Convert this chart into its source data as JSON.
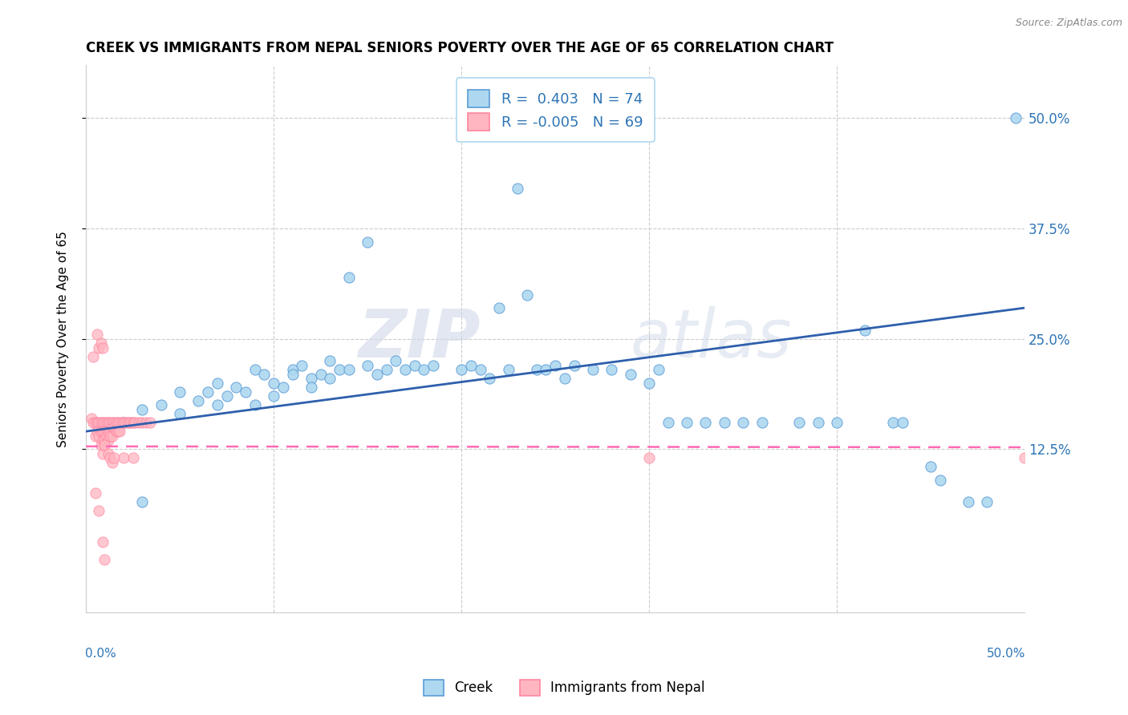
{
  "title": "CREEK VS IMMIGRANTS FROM NEPAL SENIORS POVERTY OVER THE AGE OF 65 CORRELATION CHART",
  "source": "Source: ZipAtlas.com",
  "ylabel": "Seniors Poverty Over the Age of 65",
  "ytick_labels": [
    "12.5%",
    "25.0%",
    "37.5%",
    "50.0%"
  ],
  "ytick_values": [
    0.125,
    0.25,
    0.375,
    0.5
  ],
  "xlim": [
    0.0,
    0.5
  ],
  "ylim": [
    -0.06,
    0.56
  ],
  "legend_creek_R": "0.403",
  "legend_creek_N": "74",
  "legend_nepal_R": "-0.005",
  "legend_nepal_N": "69",
  "creek_color": "#ADD8F0",
  "nepal_color": "#FFB6C1",
  "creek_edge_color": "#5B9BD5",
  "nepal_edge_color": "#FF85A1",
  "creek_line_color": "#2E5FAC",
  "nepal_line_color": "#FF69B4",
  "watermark_zip": "ZIP",
  "watermark_atlas": "atlas",
  "creek_scatter": [
    [
      0.02,
      0.155
    ],
    [
      0.03,
      0.17
    ],
    [
      0.04,
      0.175
    ],
    [
      0.05,
      0.19
    ],
    [
      0.05,
      0.165
    ],
    [
      0.06,
      0.18
    ],
    [
      0.065,
      0.19
    ],
    [
      0.07,
      0.2
    ],
    [
      0.07,
      0.175
    ],
    [
      0.075,
      0.185
    ],
    [
      0.08,
      0.195
    ],
    [
      0.085,
      0.19
    ],
    [
      0.09,
      0.215
    ],
    [
      0.09,
      0.175
    ],
    [
      0.095,
      0.21
    ],
    [
      0.1,
      0.2
    ],
    [
      0.1,
      0.185
    ],
    [
      0.105,
      0.195
    ],
    [
      0.11,
      0.215
    ],
    [
      0.11,
      0.21
    ],
    [
      0.115,
      0.22
    ],
    [
      0.12,
      0.205
    ],
    [
      0.12,
      0.195
    ],
    [
      0.125,
      0.21
    ],
    [
      0.13,
      0.225
    ],
    [
      0.13,
      0.205
    ],
    [
      0.135,
      0.215
    ],
    [
      0.14,
      0.32
    ],
    [
      0.14,
      0.215
    ],
    [
      0.15,
      0.36
    ],
    [
      0.15,
      0.22
    ],
    [
      0.155,
      0.21
    ],
    [
      0.16,
      0.215
    ],
    [
      0.165,
      0.225
    ],
    [
      0.17,
      0.215
    ],
    [
      0.175,
      0.22
    ],
    [
      0.18,
      0.215
    ],
    [
      0.185,
      0.22
    ],
    [
      0.2,
      0.215
    ],
    [
      0.205,
      0.22
    ],
    [
      0.21,
      0.215
    ],
    [
      0.215,
      0.205
    ],
    [
      0.22,
      0.285
    ],
    [
      0.225,
      0.215
    ],
    [
      0.23,
      0.42
    ],
    [
      0.235,
      0.3
    ],
    [
      0.24,
      0.215
    ],
    [
      0.245,
      0.215
    ],
    [
      0.25,
      0.22
    ],
    [
      0.255,
      0.205
    ],
    [
      0.26,
      0.22
    ],
    [
      0.27,
      0.215
    ],
    [
      0.28,
      0.215
    ],
    [
      0.29,
      0.21
    ],
    [
      0.3,
      0.2
    ],
    [
      0.305,
      0.215
    ],
    [
      0.31,
      0.155
    ],
    [
      0.32,
      0.155
    ],
    [
      0.33,
      0.155
    ],
    [
      0.34,
      0.155
    ],
    [
      0.35,
      0.155
    ],
    [
      0.36,
      0.155
    ],
    [
      0.38,
      0.155
    ],
    [
      0.39,
      0.155
    ],
    [
      0.4,
      0.155
    ],
    [
      0.415,
      0.26
    ],
    [
      0.43,
      0.155
    ],
    [
      0.435,
      0.155
    ],
    [
      0.45,
      0.105
    ],
    [
      0.455,
      0.09
    ],
    [
      0.47,
      0.065
    ],
    [
      0.48,
      0.065
    ],
    [
      0.495,
      0.5
    ],
    [
      0.03,
      0.065
    ]
  ],
  "nepal_scatter": [
    [
      0.003,
      0.16
    ],
    [
      0.004,
      0.155
    ],
    [
      0.005,
      0.155
    ],
    [
      0.005,
      0.14
    ],
    [
      0.006,
      0.155
    ],
    [
      0.006,
      0.145
    ],
    [
      0.007,
      0.155
    ],
    [
      0.007,
      0.14
    ],
    [
      0.008,
      0.155
    ],
    [
      0.008,
      0.145
    ],
    [
      0.008,
      0.13
    ],
    [
      0.009,
      0.155
    ],
    [
      0.009,
      0.145
    ],
    [
      0.009,
      0.135
    ],
    [
      0.009,
      0.12
    ],
    [
      0.01,
      0.155
    ],
    [
      0.01,
      0.145
    ],
    [
      0.01,
      0.135
    ],
    [
      0.01,
      0.13
    ],
    [
      0.011,
      0.155
    ],
    [
      0.011,
      0.145
    ],
    [
      0.011,
      0.14
    ],
    [
      0.012,
      0.155
    ],
    [
      0.012,
      0.145
    ],
    [
      0.012,
      0.135
    ],
    [
      0.013,
      0.155
    ],
    [
      0.013,
      0.145
    ],
    [
      0.013,
      0.14
    ],
    [
      0.014,
      0.155
    ],
    [
      0.014,
      0.15
    ],
    [
      0.014,
      0.14
    ],
    [
      0.015,
      0.155
    ],
    [
      0.015,
      0.15
    ],
    [
      0.016,
      0.155
    ],
    [
      0.016,
      0.145
    ],
    [
      0.017,
      0.155
    ],
    [
      0.017,
      0.145
    ],
    [
      0.018,
      0.155
    ],
    [
      0.018,
      0.145
    ],
    [
      0.019,
      0.155
    ],
    [
      0.02,
      0.155
    ],
    [
      0.021,
      0.155
    ],
    [
      0.022,
      0.155
    ],
    [
      0.023,
      0.155
    ],
    [
      0.024,
      0.155
    ],
    [
      0.025,
      0.155
    ],
    [
      0.026,
      0.155
    ],
    [
      0.028,
      0.155
    ],
    [
      0.03,
      0.155
    ],
    [
      0.032,
      0.155
    ],
    [
      0.034,
      0.155
    ],
    [
      0.004,
      0.23
    ],
    [
      0.006,
      0.255
    ],
    [
      0.007,
      0.24
    ],
    [
      0.008,
      0.245
    ],
    [
      0.009,
      0.24
    ],
    [
      0.01,
      0.13
    ],
    [
      0.012,
      0.12
    ],
    [
      0.013,
      0.115
    ],
    [
      0.014,
      0.11
    ],
    [
      0.005,
      0.075
    ],
    [
      0.007,
      0.055
    ],
    [
      0.009,
      0.02
    ],
    [
      0.01,
      0.0
    ],
    [
      0.015,
      0.115
    ],
    [
      0.02,
      0.115
    ],
    [
      0.025,
      0.115
    ],
    [
      0.3,
      0.115
    ],
    [
      0.5,
      0.115
    ]
  ],
  "creek_trend_x": [
    0.0,
    0.5
  ],
  "creek_trend_y": [
    0.145,
    0.285
  ],
  "nepal_trend_x": [
    0.0,
    0.5
  ],
  "nepal_trend_y": [
    0.128,
    0.127
  ]
}
